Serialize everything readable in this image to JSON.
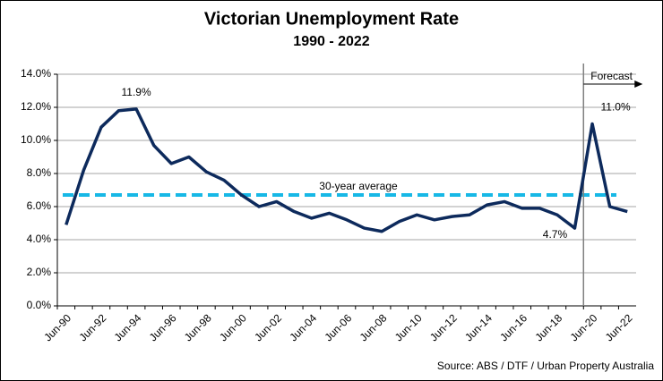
{
  "chart_data": {
    "type": "line",
    "title": "Victorian Unemployment Rate",
    "subtitle": "1990 - 2022",
    "categories": [
      "Jun-90",
      null,
      "Jun-92",
      null,
      "Jun-94",
      null,
      "Jun-96",
      null,
      "Jun-98",
      null,
      "Jun-00",
      null,
      "Jun-02",
      null,
      "Jun-04",
      null,
      "Jun-06",
      null,
      "Jun-08",
      null,
      "Jun-10",
      null,
      "Jun-12",
      null,
      "Jun-14",
      null,
      "Jun-16",
      null,
      "Jun-18",
      null,
      "Jun-20",
      null,
      "Jun-22"
    ],
    "series": [
      {
        "name": "Victorian Unemployment Rate",
        "color": "#0d2a5c",
        "values": [
          4.9,
          8.2,
          10.8,
          11.8,
          11.9,
          9.7,
          8.6,
          9.0,
          8.1,
          7.6,
          6.7,
          6.0,
          6.3,
          5.7,
          5.3,
          5.6,
          5.2,
          4.7,
          4.5,
          5.1,
          5.5,
          5.2,
          5.4,
          5.5,
          6.1,
          6.3,
          5.9,
          5.9,
          5.5,
          4.7,
          11.0,
          6.0,
          5.7
        ],
        "value_labels": [
          null,
          null,
          null,
          null,
          "11.9%",
          null,
          null,
          null,
          null,
          null,
          null,
          null,
          null,
          null,
          null,
          null,
          null,
          null,
          null,
          null,
          null,
          null,
          null,
          null,
          null,
          null,
          null,
          null,
          null,
          "4.7%",
          "11.0%",
          null,
          null
        ]
      }
    ],
    "average": {
      "label": "30-year average",
      "value": 6.7,
      "color": "#17b8e6"
    },
    "forecast": {
      "label": "Forecast",
      "category": "Jun-20"
    },
    "ylim": [
      0,
      14
    ],
    "yticks": [
      {
        "value": 0,
        "label": "0.0%"
      },
      {
        "value": 2,
        "label": "2.0%"
      },
      {
        "value": 4,
        "label": "4.0%"
      },
      {
        "value": 6,
        "label": "6.0%"
      },
      {
        "value": 8,
        "label": "8.0%"
      },
      {
        "value": 10,
        "label": "10.0%"
      },
      {
        "value": 12,
        "label": "12.0%"
      },
      {
        "value": 14,
        "label": "14.0%"
      }
    ],
    "grid": true,
    "source": "Source: ABS / DTF / Urban Property Australia"
  }
}
